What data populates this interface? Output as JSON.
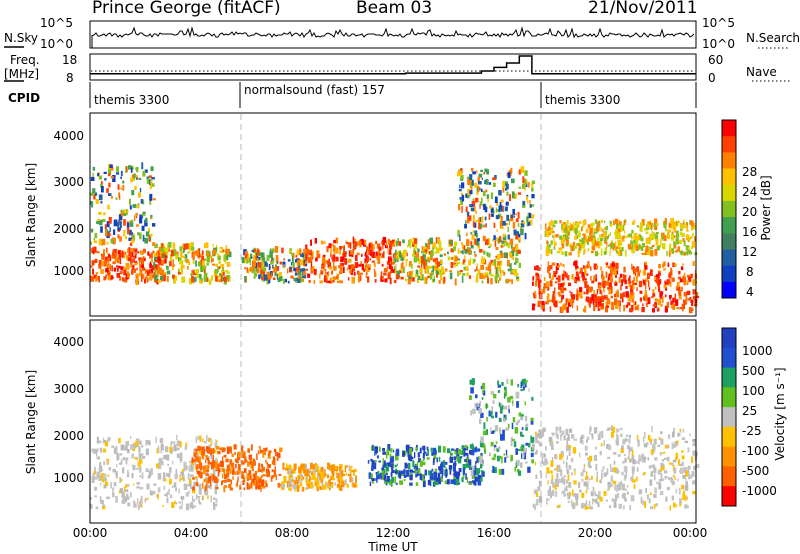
{
  "header": {
    "station": "Prince George (fitACF)",
    "beam": "Beam 03",
    "date": "21/Nov/2011"
  },
  "panels": {
    "nsky": {
      "label": "N.Sky",
      "ticks": [
        "10^5",
        "10^0"
      ],
      "right_label": "N.Search",
      "right_ticks": [
        "10^5",
        "10^0"
      ]
    },
    "freq": {
      "label_line1": "Freq.",
      "label_line2": "[MHz]",
      "ticks": [
        "18",
        "8"
      ],
      "right_label": "Nave",
      "right_ticks": [
        "60",
        "0"
      ]
    },
    "cpid": {
      "label": "CPID",
      "segments": [
        "themis 3300",
        "normalsound (fast) 157",
        "themis 3300"
      ]
    },
    "power": {
      "ylabel": "Slant Range [km]",
      "cbar_label": "Power [dB]",
      "cbar_ticks": [
        "28",
        "24",
        "20",
        "16",
        "12",
        "8",
        "4"
      ],
      "cbar_colors": [
        "#ff0000",
        "#ff4000",
        "#ff8000",
        "#ffc000",
        "#d8d800",
        "#80c020",
        "#40a050",
        "#408060",
        "#2060a0",
        "#1040c0",
        "#0000ff"
      ]
    },
    "velocity": {
      "ylabel": "Slant Range [km]",
      "cbar_label": "Velocity [m s⁻¹]",
      "cbar_ticks": [
        "1000",
        "500",
        "100",
        "25",
        "-25",
        "-100",
        "-500",
        "-1000"
      ],
      "cbar_colors": [
        "#2040c0",
        "#2050d0",
        "#20a060",
        "#60c020",
        "#c0c0c0",
        "#ffc000",
        "#ff9000",
        "#ff6000",
        "#ff0000"
      ]
    }
  },
  "xaxis": {
    "title": "Time UT",
    "ticks": [
      "00:00",
      "04:00",
      "08:00",
      "12:00",
      "16:00",
      "20:00",
      "00:00"
    ]
  },
  "yaxis_ticks": [
    "4000",
    "3000",
    "2000",
    "1000"
  ],
  "chart_data": {
    "type": "heatmap",
    "title": "Prince George (fitACF) Beam 03 21/Nov/2011",
    "xlabel": "Time UT",
    "ylabel": "Slant Range [km]",
    "xlim_hours": [
      0,
      24
    ],
    "ylim_km": [
      180,
      4500
    ],
    "cpid_boundaries_hours": [
      6,
      18
    ],
    "power_blobs": [
      {
        "t": [
          0.0,
          3.0
        ],
        "r": [
          900,
          1600
        ],
        "level": "high"
      },
      {
        "t": [
          0.0,
          2.5
        ],
        "r": [
          1700,
          3400
        ],
        "level": "mixed"
      },
      {
        "t": [
          2.5,
          5.5
        ],
        "r": [
          900,
          1700
        ],
        "level": "mid"
      },
      {
        "t": [
          6.0,
          8.5
        ],
        "r": [
          900,
          1600
        ],
        "level": "mixed"
      },
      {
        "t": [
          8.5,
          12.0
        ],
        "r": [
          900,
          1800
        ],
        "level": "high"
      },
      {
        "t": [
          12.0,
          17.0
        ],
        "r": [
          900,
          1800
        ],
        "level": "mid"
      },
      {
        "t": [
          14.5,
          17.5
        ],
        "r": [
          1800,
          3300
        ],
        "level": "mixed"
      },
      {
        "t": [
          17.5,
          24.0
        ],
        "r": [
          300,
          1300
        ],
        "level": "high"
      },
      {
        "t": [
          18.0,
          24.0
        ],
        "r": [
          1500,
          2200
        ],
        "level": "low"
      }
    ],
    "velocity_blobs": [
      {
        "t": [
          0.0,
          5.0
        ],
        "r": [
          500,
          2000
        ],
        "class": "ground"
      },
      {
        "t": [
          4.0,
          7.5
        ],
        "r": [
          900,
          1800
        ],
        "class": "negative-medium"
      },
      {
        "t": [
          7.5,
          10.5
        ],
        "r": [
          900,
          1400
        ],
        "class": "negative-low"
      },
      {
        "t": [
          11.0,
          15.5
        ],
        "r": [
          1000,
          1800
        ],
        "class": "positive"
      },
      {
        "t": [
          15.0,
          17.5
        ],
        "r": [
          1200,
          3200
        ],
        "class": "positive-low"
      },
      {
        "t": [
          17.5,
          24.0
        ],
        "r": [
          500,
          2200
        ],
        "class": "ground"
      }
    ],
    "nsky_trace": "high, roughly constant",
    "freq_mhz": [
      {
        "t": [
          0.0,
          12.5
        ],
        "f": 10.4
      },
      {
        "t": [
          12.5,
          15.5
        ],
        "f": 10.8
      },
      {
        "t": [
          15.5,
          16.0
        ],
        "f": 12.0
      },
      {
        "t": [
          16.0,
          16.5
        ],
        "f": 14.0
      },
      {
        "t": [
          16.5,
          17.0
        ],
        "f": 16.5
      },
      {
        "t": [
          17.0,
          17.5
        ],
        "f": 20.5
      },
      {
        "t": [
          17.5,
          24.0
        ],
        "f": 10.4
      }
    ]
  }
}
